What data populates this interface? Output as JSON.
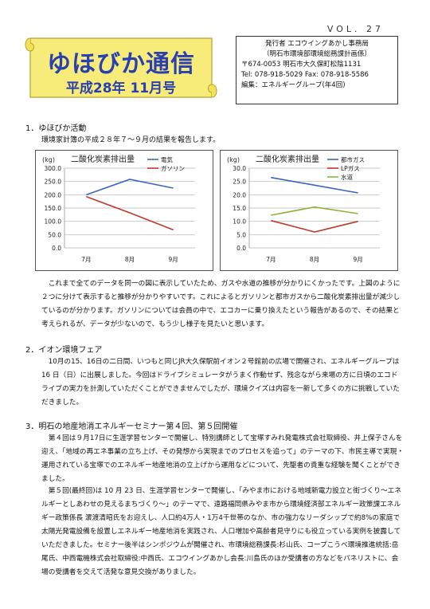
{
  "vol": "VOL. 27",
  "banner": {
    "title": "ゆほびか通信",
    "date": "平成28年 11月号"
  },
  "publisher": {
    "line1": "発行者 エコウイングあかし事務局",
    "line2": "（明石市環境部環境総務課計画係）",
    "line3": "〒674-0053 明石市大久保町松陰1131",
    "line4": "Tel: 078-918-5029 Fax: 078-918-5586",
    "line5": "編集：エネルギーグループ(年4回)"
  },
  "sections": {
    "s1_title": "1．ゆほびか活動",
    "s1_sub": "環境家計簿の平成２８年７～９月の結果を報告します。",
    "s1_para": "これまで全てのデータを同一の図に表示していたため、ガスや水道の推移が分かりにくかったです。上図のように２つに分けて表示すると推移が分かりやすいです。これによるとガソリンと都市ガスから二酸化炭素排出量が減少しているのが分かります。ガソリンについては会員の中で、エコカーに乗り換えたという報告があるので、その結果と考えられるが、データが少ないので、もう少し様子を見たいと思います。",
    "s2_title": "2．イオン環境フェア",
    "s2_para": "10月の15、16日の二日間、いつもと同じJR大久保駅前イオン２号館前の広場で開催され、エネルギーグループは 16 日（日）に出展しました。今回はドライブシミュレータがうまく作動せず、残念ながら来場の方に日頃のエコドライブの実力を計測していただくことができませんでしたが、環境クイズは内容を一新して多くの方に挑戦していただきました。",
    "s3_title": "3．明石の地産地消エネルギーセミナー第４回、第５回開催",
    "s3_para1": "第４回は９月17日に生涯学習センターで開催し、特別講師として宝塚すみれ発電株式会社取締役、井上保子さんを迎え、「地域の再エネ事業の立ち上げ、その発想から実現までのプロセスを追って」のテーマの下、市民主導で実現・運用されている宝塚でのエネルギー地産地消の立上げから運用などについて、先駆者の貴重な経験を聞くことができました。",
    "s3_para2": "第５回(最終回)は 10 月 23 日、生涯学習センターで開催し、「みやま市における地域新電力設立と街づくり～エネルギーとしあわせの見えるまちづくり～」のテーマで、遠路福岡県みやま市から環境経済部エネルギー政策課エネルギー政策係長 濵渡清昭氏をお迎えし、人口約4万人・1万4千世帯のなか、市の強力なリーダシップで約8%の家庭で太陽光発電設備を設置しエネルギー地産地消を実践され、人口増加や高齢者見守りにも役立っている実例を披露していただきました。セミナー後半はシンポジウムが開催され、市環境総務課長:杉山氏、コープこうべ環境推進統括:岳尾氏、中西電機株式会社取締役:中西氏、エコウイングあかし会長:川島氏のほか受講者の方などをパネリストに、会場の受講者を交えて活発な意見交換がありました。"
  },
  "chart_data": [
    {
      "type": "line",
      "title": "二酸化炭素排出量",
      "ylabel": "(kg)",
      "categories": [
        "7月",
        "8月",
        "9月"
      ],
      "ylim": [
        0,
        300
      ],
      "yticks": [
        "300.0",
        "250.0",
        "200.0",
        "150.0",
        "100.0",
        "50.0",
        "0.0"
      ],
      "grid": true,
      "legend": "top-right",
      "series": [
        {
          "name": "電気",
          "values": [
            200,
            258,
            225
          ],
          "color": "#3b64c4"
        },
        {
          "name": "ガソリン",
          "values": [
            193,
            132,
            68
          ],
          "color": "#c0392b"
        }
      ]
    },
    {
      "type": "line",
      "title": "二酸化炭素排出量",
      "ylabel": "(kg)",
      "categories": [
        "7月",
        "8月",
        "9月"
      ],
      "ylim": [
        0,
        30
      ],
      "yticks": [
        "30.0",
        "25.0",
        "20.0",
        "15.0",
        "10.0",
        "5.0",
        "0.0"
      ],
      "grid": true,
      "legend": "top-right",
      "series": [
        {
          "name": "都市ガス",
          "values": [
            26.5,
            23.6,
            20.7
          ],
          "color": "#3b64c4"
        },
        {
          "name": "LPガス",
          "values": [
            10.3,
            6.0,
            10.0
          ],
          "color": "#c0392b"
        },
        {
          "name": "水道",
          "values": [
            12.3,
            15.4,
            12.9
          ],
          "color": "#8db33a"
        }
      ]
    }
  ]
}
